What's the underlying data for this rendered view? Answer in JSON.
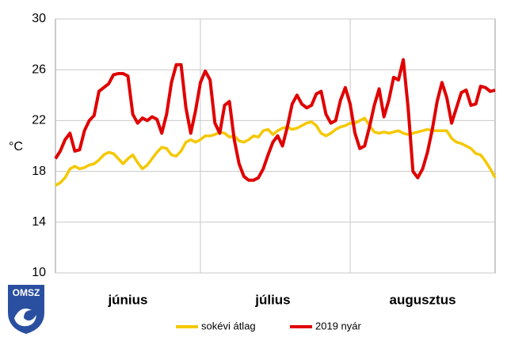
{
  "logo": "OMSZ",
  "chart_data": {
    "type": "line",
    "y_label": "°C",
    "categories": [
      null,
      null,
      null,
      null,
      null,
      null,
      null,
      null,
      null,
      null,
      null,
      null,
      null,
      null,
      null,
      "június",
      null,
      null,
      null,
      null,
      null,
      null,
      null,
      null,
      null,
      null,
      null,
      null,
      null,
      null,
      null,
      null,
      null,
      null,
      null,
      null,
      null,
      null,
      null,
      null,
      null,
      null,
      null,
      null,
      null,
      "július",
      null,
      null,
      null,
      null,
      null,
      null,
      null,
      null,
      null,
      null,
      null,
      null,
      null,
      null,
      null,
      null,
      null,
      null,
      null,
      null,
      null,
      null,
      null,
      null,
      null,
      null,
      null,
      null,
      null,
      null,
      "augusztus",
      null,
      null,
      null,
      null,
      null,
      null,
      null,
      null,
      null,
      null,
      null,
      null,
      null,
      null,
      null
    ],
    "series": [
      {
        "name": "sokévi átlag",
        "color": "#f5c800",
        "values": [
          16.9,
          17.1,
          17.5,
          18.2,
          18.4,
          18.2,
          18.3,
          18.5,
          18.6,
          18.9,
          19.3,
          19.5,
          19.4,
          19.0,
          18.6,
          19.0,
          19.3,
          18.7,
          18.2,
          18.5,
          19.0,
          19.5,
          19.9,
          19.8,
          19.3,
          19.2,
          19.6,
          20.3,
          20.5,
          20.3,
          20.5,
          20.8,
          20.8,
          20.9,
          21.1,
          21.0,
          20.7,
          20.8,
          20.4,
          20.3,
          20.5,
          20.8,
          20.7,
          21.2,
          21.3,
          20.9,
          21.2,
          21.4,
          21.5,
          21.3,
          21.4,
          21.6,
          21.8,
          21.9,
          21.6,
          21.0,
          20.8,
          21.0,
          21.3,
          21.5,
          21.6,
          21.8,
          21.8,
          22.0,
          22.2,
          21.6,
          21.1,
          21.0,
          21.1,
          21.0,
          21.1,
          21.2,
          21.0,
          20.9,
          21.0,
          21.1,
          21.2,
          21.3,
          21.2,
          21.2,
          21.2,
          21.2,
          20.6,
          20.3,
          20.2,
          20.0,
          19.8,
          19.4,
          19.3,
          18.8,
          18.2,
          17.5
        ]
      },
      {
        "name": "2019 nyár",
        "color": "#e00000",
        "values": [
          19.0,
          19.6,
          20.5,
          21.0,
          19.6,
          19.7,
          21.2,
          22.0,
          22.4,
          24.3,
          24.6,
          24.9,
          25.6,
          25.7,
          25.7,
          25.5,
          22.5,
          21.8,
          22.2,
          22.0,
          22.3,
          22.1,
          21.0,
          22.5,
          25.0,
          26.4,
          26.4,
          23.0,
          21.0,
          22.8,
          25.0,
          25.9,
          25.2,
          21.8,
          21.0,
          23.2,
          23.5,
          20.5,
          18.6,
          17.6,
          17.3,
          17.3,
          17.5,
          18.2,
          19.3,
          20.3,
          20.8,
          20.0,
          21.5,
          23.3,
          24.0,
          23.3,
          23.0,
          23.2,
          24.1,
          24.3,
          22.5,
          21.8,
          22.0,
          23.6,
          24.6,
          23.3,
          21.0,
          19.8,
          20.0,
          21.5,
          23.2,
          24.5,
          22.3,
          23.6,
          25.4,
          25.2,
          26.8,
          23.0,
          18.0,
          17.5,
          18.2,
          19.5,
          21.3,
          23.5,
          25.0,
          23.8,
          21.8,
          23.0,
          24.2,
          24.4,
          23.2,
          23.3,
          24.7,
          24.6,
          24.3,
          24.4
        ]
      }
    ],
    "ylim": [
      10,
      30
    ],
    "yticks": [
      10,
      14,
      18,
      22,
      26,
      30
    ],
    "grid": true
  }
}
